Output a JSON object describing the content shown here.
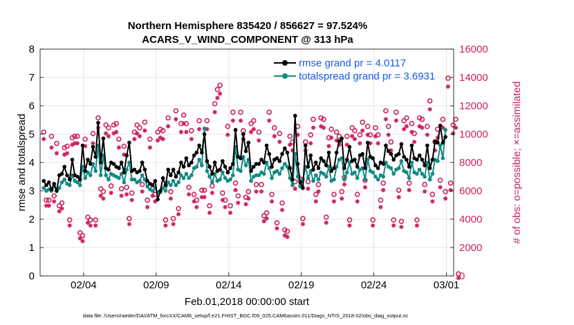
{
  "chart_data": {
    "type": "line",
    "title_line1": "Northern Hemisphere 835420 / 856627 = 97.524%",
    "title_line2": "ACARS_V_WIND_COMPONENT @ 313 hPa",
    "xlabel": "Feb.01,2018 00:00:00 start",
    "ylabel_left": "rmse and totalspread",
    "ylabel_right": "# of obs: o=possible; ×=assimilated",
    "footer": "data file: /Users/raeder/DAI/ATM_forcXX/CAM6_setup/f.e21.FHIST_BGC.f09_025.CAM6assim.011/Diags_NTrS_2018-02/obs_diag_output.nc",
    "xlim": [
      1,
      29.5
    ],
    "ylim_left": [
      0,
      8
    ],
    "ylim_right": [
      0,
      16000
    ],
    "x_ticks": [
      {
        "value": 4,
        "label": "02/04"
      },
      {
        "value": 9,
        "label": "02/09"
      },
      {
        "value": 14,
        "label": "02/14"
      },
      {
        "value": 19,
        "label": "02/19"
      },
      {
        "value": 24,
        "label": "02/24"
      },
      {
        "value": 29,
        "label": "03/01"
      }
    ],
    "y_ticks_left": [
      "0",
      "1",
      "2",
      "3",
      "4",
      "5",
      "6",
      "7",
      "8"
    ],
    "y_ticks_right": [
      "0",
      "2000",
      "4000",
      "6000",
      "8000",
      "10000",
      "12000",
      "14000",
      "16000"
    ],
    "grid": true,
    "legend_position": "top-right",
    "colors": {
      "rmse": "#000000",
      "spread": "#138a84",
      "obs": "#cc1f5f",
      "legend_text": "#1a5ce0",
      "grid": "#dedede"
    },
    "series": [
      {
        "name": "rmse grand pr = 4.0117",
        "axis": "left",
        "values": [
          3.35,
          3.2,
          3.3,
          3.05,
          3.25,
          3.0,
          3.55,
          3.6,
          3.85,
          3.55,
          3.4,
          4.1,
          3.55,
          3.5,
          3.4,
          4.6,
          3.7,
          4.1,
          3.95,
          4.55,
          4.2,
          5.4,
          4.0,
          4.85,
          3.8,
          3.75,
          4.0,
          3.95,
          3.85,
          3.8,
          4.0,
          3.65,
          4.25,
          4.7,
          3.7,
          3.75,
          3.65,
          3.7,
          4.0,
          3.75,
          3.35,
          3.25,
          3.2,
          3.35,
          2.7,
          3.0,
          3.45,
          3.2,
          3.75,
          3.55,
          3.75,
          3.5,
          3.65,
          4.0,
          3.85,
          4.15,
          3.9,
          4.0,
          4.25,
          4.35,
          4.6,
          4.35,
          5.0,
          4.05,
          3.85,
          3.6,
          4.0,
          3.7,
          3.75,
          4.05,
          3.85,
          3.65,
          3.8,
          3.95,
          5.15,
          4.2,
          4.15,
          5.0,
          4.4,
          4.7,
          3.7,
          3.85,
          3.95,
          3.95,
          4.1,
          4.0,
          4.6,
          4.3,
          3.85,
          4.1,
          4.15,
          4.05,
          4.3,
          4.5,
          4.35,
          3.8,
          3.4,
          5.65,
          3.95,
          3.3,
          3.1,
          4.6,
          3.85,
          4.25,
          3.75,
          4.0,
          3.8,
          4.15,
          4.05,
          3.9,
          4.35,
          3.7,
          3.8,
          4.35,
          4.75,
          4.85,
          3.8,
          4.1,
          4.55,
          4.05,
          4.1,
          3.85,
          4.25,
          4.3,
          3.8,
          4.7,
          4.2,
          4.15,
          3.9,
          3.8,
          4.0,
          3.95,
          4.6,
          4.4,
          4.3,
          4.1,
          4.25,
          4.3,
          4.65,
          4.2,
          4.1,
          3.85,
          4.6,
          4.15,
          4.1,
          4.25,
          4.1,
          3.9,
          4.6,
          3.8,
          4.1,
          4.75,
          4.7,
          5.3,
          4.7,
          4.9
        ]
      },
      {
        "name": "totalspread grand pr = 3.6931",
        "axis": "left",
        "values": [
          3.1,
          3.0,
          3.05,
          3.0,
          3.15,
          3.0,
          3.1,
          3.3,
          3.4,
          3.25,
          3.2,
          3.55,
          3.35,
          3.3,
          3.2,
          3.85,
          3.45,
          3.65,
          3.55,
          3.95,
          3.7,
          4.6,
          3.55,
          4.25,
          3.55,
          3.4,
          3.6,
          3.55,
          3.5,
          3.45,
          3.6,
          3.3,
          3.75,
          4.0,
          3.4,
          3.4,
          3.3,
          3.35,
          3.55,
          3.4,
          3.15,
          3.05,
          3.0,
          3.1,
          2.95,
          2.95,
          3.1,
          3.0,
          3.3,
          3.2,
          3.35,
          3.2,
          3.3,
          3.55,
          3.45,
          3.6,
          3.45,
          3.55,
          3.8,
          3.85,
          4.1,
          3.9,
          5.2,
          3.7,
          3.5,
          3.3,
          3.6,
          3.35,
          3.4,
          3.65,
          3.45,
          3.35,
          3.4,
          3.55,
          4.55,
          3.75,
          3.7,
          4.2,
          3.9,
          4.1,
          3.35,
          3.5,
          3.55,
          3.55,
          3.65,
          3.6,
          4.0,
          3.8,
          3.45,
          3.65,
          3.7,
          3.6,
          3.8,
          3.95,
          3.85,
          3.45,
          3.2,
          4.3,
          3.5,
          3.15,
          3.4,
          3.85,
          3.45,
          3.7,
          3.35,
          3.55,
          3.4,
          3.65,
          3.6,
          3.5,
          3.85,
          3.35,
          3.4,
          3.85,
          4.1,
          4.15,
          3.4,
          3.65,
          4.0,
          3.6,
          3.65,
          3.45,
          3.75,
          3.8,
          3.4,
          4.1,
          3.7,
          3.65,
          3.5,
          3.4,
          3.55,
          3.5,
          4.0,
          3.85,
          3.8,
          3.6,
          3.75,
          3.8,
          4.05,
          3.7,
          3.65,
          3.45,
          4.0,
          3.65,
          3.6,
          3.75,
          3.6,
          3.5,
          4.0,
          3.4,
          3.6,
          4.1,
          4.05,
          4.6,
          4.15,
          5.15
        ]
      },
      {
        "name": "possible",
        "axis": "right",
        "values": [
          10000,
          5200,
          5200,
          9700,
          5500,
          9200,
          4800,
          5000,
          8900,
          9000,
          3800,
          9600,
          9700,
          9700,
          2900,
          2700,
          9500,
          4000,
          3800,
          9900,
          3800,
          11000,
          6000,
          5800,
          10500,
          10300,
          6200,
          10500,
          10600,
          9500,
          6000,
          9000,
          6100,
          3900,
          5700,
          10000,
          10500,
          10300,
          6300,
          10700,
          5200,
          9500,
          6000,
          5600,
          10000,
          10200,
          10100,
          3800,
          11000,
          5800,
          3900,
          11500,
          4600,
          10600,
          11200,
          10600,
          6100,
          10100,
          5600,
          5200,
          10800,
          5900,
          5900,
          10800,
          4800,
          6200,
          12000,
          13000,
          13300,
          5700,
          5200,
          10400,
          4800,
          11400,
          6400,
          5500,
          11400,
          10100,
          5400,
          5800,
          10600,
          10800,
          6300,
          10000,
          6300,
          4100,
          4300,
          11400,
          5600,
          10300,
          3600,
          9900,
          5000,
          3100,
          3000,
          9700,
          9300,
          6500,
          10400,
          6700,
          3900,
          9300,
          6500,
          9800,
          10900,
          5600,
          6300,
          11000,
          10900,
          4000,
          9600,
          10200,
          5600,
          10000,
          9700,
          5800,
          6800,
          9700,
          3800,
          10300,
          10100,
          5600,
          9800,
          10700,
          6600,
          10400,
          9800,
          3800,
          10300,
          9800,
          5200,
          6400,
          11500,
          10400,
          9300,
          3800,
          11400,
          5900,
          3700,
          10800,
          11000,
          6400,
          10600,
          9900,
          3800,
          11000,
          10900,
          6300,
          10400,
          12200,
          5600,
          9300,
          10200,
          6600,
          10900,
          5800,
          13800,
          6400,
          10500,
          10900,
          0
        ]
      },
      {
        "name": "assimilated",
        "axis": "right",
        "values": [
          9800,
          5100,
          5100,
          9200,
          5400,
          8800,
          4700,
          4900,
          8700,
          8800,
          3700,
          9400,
          9500,
          9500,
          2800,
          2600,
          9300,
          3900,
          3700,
          9500,
          3700,
          10600,
          5800,
          5600,
          10200,
          10000,
          6000,
          10200,
          10300,
          9200,
          5800,
          8700,
          5900,
          3800,
          5500,
          9800,
          10200,
          10000,
          6100,
          10400,
          5000,
          9200,
          5800,
          5400,
          9700,
          9900,
          9800,
          3700,
          10700,
          5600,
          3800,
          11200,
          4500,
          10300,
          10900,
          10300,
          5900,
          9800,
          5400,
          5000,
          10500,
          5700,
          5700,
          10500,
          4600,
          6000,
          11700,
          12700,
          13000,
          5500,
          5000,
          10100,
          4600,
          11100,
          6200,
          5300,
          11100,
          9800,
          5200,
          5600,
          10300,
          10500,
          6100,
          9700,
          6100,
          4000,
          4200,
          11100,
          5400,
          10000,
          3500,
          9600,
          4800,
          3000,
          2900,
          9400,
          9000,
          6300,
          10100,
          6500,
          3800,
          9000,
          6300,
          9500,
          10600,
          5400,
          6100,
          10700,
          10600,
          3900,
          9300,
          9900,
          5400,
          9700,
          9400,
          5600,
          6600,
          9400,
          3700,
          10000,
          9800,
          5400,
          9500,
          10400,
          6400,
          10100,
          9500,
          3700,
          10000,
          9500,
          5000,
          6200,
          11200,
          10100,
          9000,
          3700,
          11100,
          5700,
          3600,
          10500,
          10700,
          6200,
          10300,
          9600,
          3700,
          10700,
          10600,
          6100,
          10100,
          11900,
          5400,
          9000,
          9900,
          6400,
          10600,
          5600,
          13500,
          6200,
          10200,
          10600,
          0
        ]
      }
    ]
  }
}
